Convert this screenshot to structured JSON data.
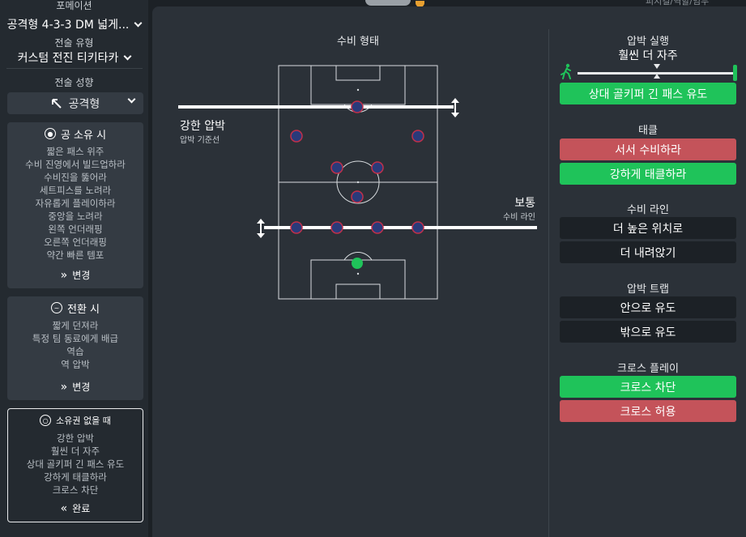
{
  "sidebar": {
    "formation_label": "포메이션",
    "formation_value": "공격형 4-3-3 DM 넓게...",
    "tactic_type_label": "전술 유형",
    "tactic_type_value": "커스텀 전진 티키타카",
    "style_label": "전술 성향",
    "style_value": "공격형",
    "in_possession": {
      "title": "공 소유 시",
      "items": [
        "짧은 패스 위주",
        "수비 진영에서 빌드업하라",
        "수비진을 뚫어라",
        "세트피스를 노려라",
        "자유롭게 플레이하라",
        "중앙을 노려라",
        "왼쪽 언더래핑",
        "오른쪽 언더래핑",
        "약간 빠른 템포"
      ],
      "button": "변경"
    },
    "transition": {
      "title": "전환 시",
      "items": [
        "짧게 던져라",
        "특정 팀 동료에게 배급",
        "역습",
        "역 압박"
      ],
      "button": "변경"
    },
    "out_of_possession": {
      "title": "소유권 없을 때",
      "items": [
        "강한 압박",
        "훨씬 더 자주",
        "상대 골키퍼 긴 패스 유도",
        "강하게 태클하라",
        "크로스 차단"
      ],
      "button": "완료"
    }
  },
  "header": {
    "top_right": "피지컬/역할/임무"
  },
  "pitch": {
    "title": "수비 형태",
    "press_line_label": "강한 압박",
    "press_line_sub": "압박 기준선",
    "def_line_label": "보통",
    "def_line_sub": "수비 라인"
  },
  "right": {
    "pressing": {
      "title": "압박 실행",
      "value": "훨씬 더 자주",
      "level": 0.95,
      "option": "상대 골키퍼 긴 패스 유도"
    },
    "tackling": {
      "title": "태클",
      "options": [
        "서서 수비하라",
        "강하게 태클하라"
      ]
    },
    "def_line": {
      "title": "수비 라인",
      "options": [
        "더 높은 위치로",
        "더 내려앉기"
      ]
    },
    "press_trap": {
      "title": "압박 트랩",
      "options": [
        "안으로 유도",
        "밖으로 유도"
      ]
    },
    "cross_play": {
      "title": "크로스 플레이",
      "options": [
        "크로스 차단",
        "크로스 허용"
      ]
    }
  },
  "colors": {
    "green": "#1fc35a",
    "red": "#c4535a",
    "player": "#2a3a7a",
    "player_ring": "#c0304a"
  }
}
